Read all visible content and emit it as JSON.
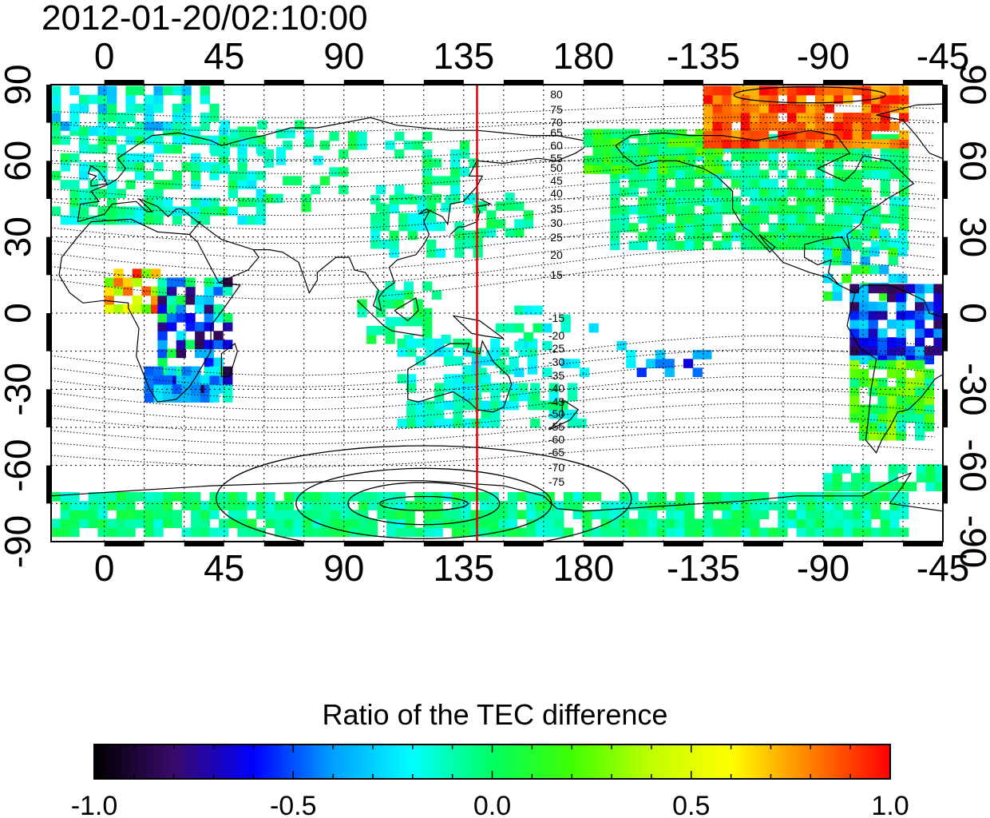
{
  "title": "2012-01-20/02:10:00",
  "map": {
    "lon_ticks_top": [
      "0",
      "45",
      "90",
      "135",
      "180",
      "-135",
      "-90",
      "-45"
    ],
    "lon_ticks_bottom": [
      "0",
      "45",
      "90",
      "135",
      "180",
      "-135",
      "-90",
      "-45"
    ],
    "lat_ticks_left": [
      "90",
      "60",
      "30",
      "0",
      "-30",
      "-60",
      "-90"
    ],
    "lat_ticks_right": [
      "90",
      "60",
      "30",
      "0",
      "-30",
      "-60",
      "-90"
    ],
    "lon_range": [
      -20,
      315
    ],
    "lat_range": [
      -90,
      90
    ],
    "grid": true,
    "contour_labels_north": [
      "80",
      "75",
      "70",
      "65",
      "60",
      "55",
      "50",
      "45",
      "40",
      "35",
      "30",
      "25",
      "20",
      "15"
    ],
    "contour_labels_south": [
      "-15",
      "-20",
      "-25",
      "-30",
      "-35",
      "-40",
      "-45",
      "-50",
      "-55",
      "-60",
      "-65",
      "-70",
      "-75"
    ],
    "terminator_longitude": 140,
    "terminator_color": "#e00000"
  },
  "colorbar": {
    "title": "Ratio of the TEC difference",
    "ticks": [
      "-1.0",
      "-0.5",
      "0.0",
      "0.5",
      "1.0"
    ],
    "range": [
      -1.0,
      1.0
    ],
    "colors": [
      "#000000",
      "#3a0a6a",
      "#0000ff",
      "#00a0ff",
      "#00ffff",
      "#00ff60",
      "#40ff00",
      "#c0ff00",
      "#ffff00",
      "#ff8000",
      "#ff0000"
    ]
  }
}
